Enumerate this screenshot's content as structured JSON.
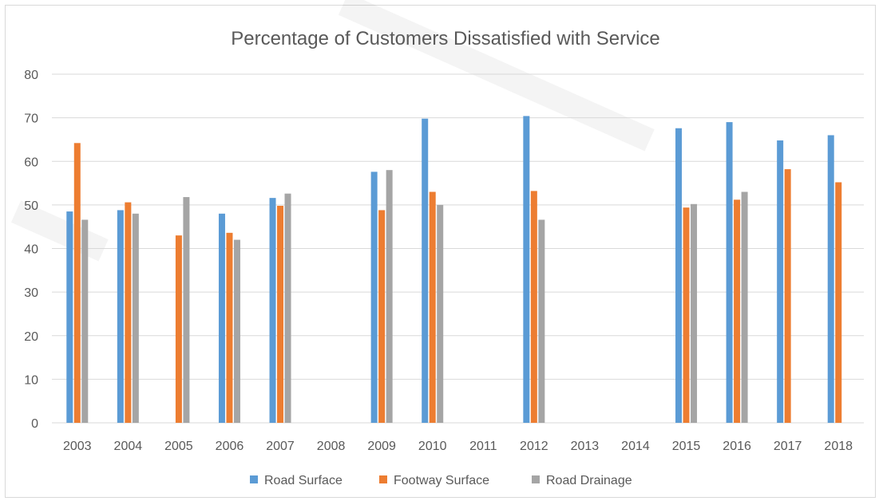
{
  "chart_data": {
    "type": "bar",
    "title": "Percentage of Customers Dissatisfied with Service",
    "xlabel": "",
    "ylabel": "",
    "ylim": [
      0,
      80
    ],
    "yticks": [
      0,
      10,
      20,
      30,
      40,
      50,
      60,
      70,
      80
    ],
    "grid": true,
    "legend_position": "bottom",
    "categories": [
      "2003",
      "2004",
      "2005",
      "2006",
      "2007",
      "2008",
      "2009",
      "2010",
      "2011",
      "2012",
      "2013",
      "2014",
      "2015",
      "2016",
      "2017",
      "2018"
    ],
    "series": [
      {
        "name": "Road Surface",
        "color": "#5b9bd5",
        "values": [
          48.5,
          48.8,
          null,
          48.0,
          51.6,
          null,
          57.6,
          69.8,
          null,
          70.4,
          null,
          null,
          67.6,
          69.0,
          64.8,
          66.0
        ]
      },
      {
        "name": "Footway Surface",
        "color": "#ed7d31",
        "values": [
          64.2,
          50.6,
          43.0,
          43.6,
          49.8,
          null,
          48.8,
          53.0,
          null,
          53.2,
          null,
          null,
          49.4,
          51.2,
          58.2,
          55.2
        ]
      },
      {
        "name": "Road Drainage",
        "color": "#a5a5a5",
        "values": [
          46.6,
          48.0,
          51.8,
          42.0,
          52.6,
          null,
          58.0,
          50.0,
          null,
          46.6,
          null,
          null,
          50.2,
          53.0,
          null,
          null
        ]
      }
    ]
  }
}
